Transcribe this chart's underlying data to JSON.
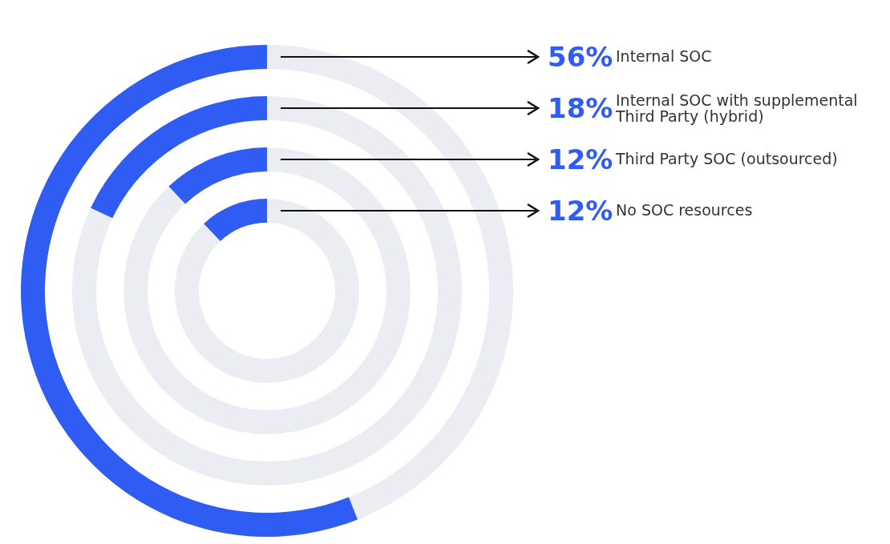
{
  "chart_data": {
    "type": "other",
    "categories": [
      "Internal SOC",
      "Internal SOC with supplemental Third Party (hybrid)",
      "Third Party SOC (outsourced)",
      "No SOC resources"
    ],
    "values": [
      56,
      18,
      12,
      12
    ],
    "value_labels": [
      "56%",
      "18%",
      "12%",
      "12%"
    ],
    "color": "#2f5cf2"
  }
}
